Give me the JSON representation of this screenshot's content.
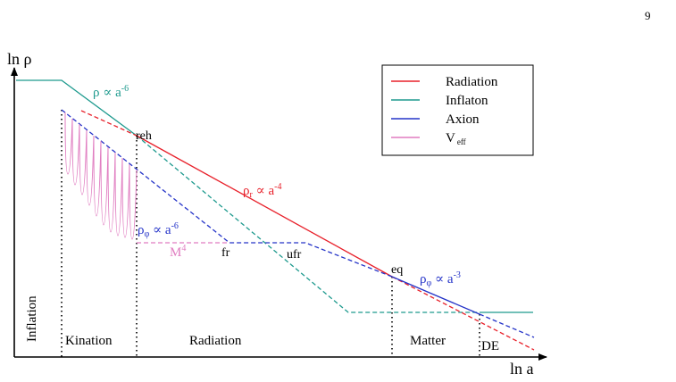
{
  "page": {
    "number": "9"
  },
  "axes": {
    "y_label": "ln ρ",
    "x_label": "ln a"
  },
  "legend": {
    "entries": [
      {
        "label": "Radiation",
        "color": "#e8202a"
      },
      {
        "label": "Inflaton",
        "color": "#1e9a8e"
      },
      {
        "label": "Axion",
        "color": "#2433c8"
      },
      {
        "label_main": "V",
        "label_sub": "eff",
        "color": "#e07cc0"
      }
    ]
  },
  "annotations": {
    "inflaton_scaling": {
      "main": "ρ ∝ a",
      "sup": "-6",
      "color": "#1e9a8e"
    },
    "reh": "reh",
    "radiation_scaling": {
      "main": "ρ",
      "sub": "r",
      "mid": " ∝ a",
      "sup": "-4",
      "color": "#e8202a"
    },
    "axion_kination_scaling": {
      "main": "ρ",
      "sub": "φ",
      "mid": " ∝ a",
      "sup": "-6",
      "color": "#2433c8"
    },
    "m4": {
      "main": "M",
      "sup": "4",
      "color": "#e07cc0"
    },
    "fr": "fr",
    "ufr": "ufr",
    "eq": "eq",
    "axion_matter_scaling": {
      "main": "ρ",
      "sub": "φ",
      "mid": " ∝ a",
      "sup": "-3",
      "color": "#2433c8"
    }
  },
  "eras": {
    "inflation": "Inflation",
    "kination": "Kination",
    "radiation": "Radiation",
    "matter": "Matter",
    "de": "DE"
  }
}
